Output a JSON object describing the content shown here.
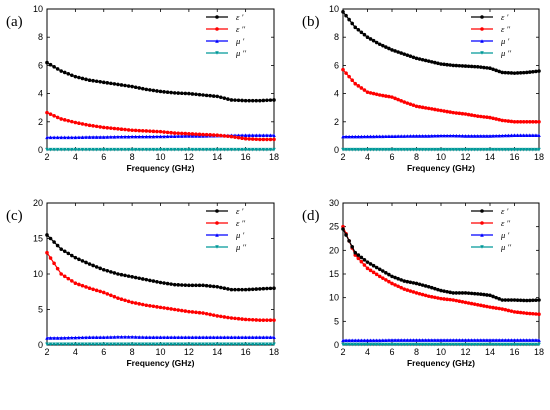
{
  "chart_data": [
    {
      "type": "line",
      "panel_label": "(a)",
      "xlabel": "Frequency (GHz)",
      "ylabel": "",
      "xlim": [
        2,
        18
      ],
      "ylim": [
        0,
        10
      ],
      "xticks": [
        "2",
        "4",
        "6",
        "8",
        "10",
        "12",
        "14",
        "16",
        "18"
      ],
      "yticks": [
        "0",
        "2",
        "4",
        "6",
        "8",
        "10"
      ],
      "legend_position": "top-right",
      "x": [
        2,
        3,
        4,
        5,
        6,
        7,
        8,
        9,
        10,
        11,
        12,
        13,
        14,
        15,
        16,
        17,
        18
      ],
      "series": [
        {
          "name": "ε '",
          "color": "#000000",
          "marker": "circle",
          "values": [
            6.2,
            5.6,
            5.2,
            4.95,
            4.8,
            4.65,
            4.5,
            4.3,
            4.15,
            4.05,
            4.0,
            3.9,
            3.8,
            3.55,
            3.5,
            3.5,
            3.55
          ]
        },
        {
          "name": "ε ''",
          "color": "#ff0000",
          "marker": "circle",
          "values": [
            2.65,
            2.2,
            1.95,
            1.75,
            1.6,
            1.5,
            1.4,
            1.35,
            1.3,
            1.2,
            1.15,
            1.1,
            1.05,
            0.95,
            0.8,
            0.75,
            0.75
          ]
        },
        {
          "name": "μ '",
          "color": "#0000ff",
          "marker": "triangle",
          "values": [
            0.9,
            0.9,
            0.9,
            0.92,
            0.92,
            0.94,
            0.95,
            0.95,
            0.96,
            0.98,
            1.0,
            1.0,
            1.02,
            1.04,
            1.05,
            1.05,
            1.05
          ]
        },
        {
          "name": "μ ''",
          "color": "#009999",
          "marker": "triangle-down",
          "values": [
            0.02,
            0.02,
            0.02,
            0.02,
            0.02,
            0.02,
            0.02,
            0.02,
            0.02,
            0.02,
            0.02,
            0.02,
            0.02,
            0.02,
            0.02,
            0.02,
            0.02
          ]
        }
      ]
    },
    {
      "type": "line",
      "panel_label": "(b)",
      "xlabel": "Frequency (GHz)",
      "ylabel": "",
      "xlim": [
        2,
        18
      ],
      "ylim": [
        0,
        10
      ],
      "xticks": [
        "2",
        "4",
        "6",
        "8",
        "10",
        "12",
        "14",
        "16",
        "18"
      ],
      "yticks": [
        "0",
        "2",
        "4",
        "6",
        "8",
        "10"
      ],
      "legend_position": "top-right",
      "x": [
        2,
        3,
        4,
        5,
        6,
        7,
        8,
        9,
        10,
        11,
        12,
        13,
        14,
        15,
        16,
        17,
        18
      ],
      "series": [
        {
          "name": "ε '",
          "color": "#000000",
          "marker": "circle",
          "values": [
            9.8,
            8.7,
            8.0,
            7.5,
            7.1,
            6.8,
            6.5,
            6.3,
            6.1,
            6.0,
            5.95,
            5.9,
            5.8,
            5.5,
            5.45,
            5.5,
            5.6
          ]
        },
        {
          "name": "ε ''",
          "color": "#ff0000",
          "marker": "circle",
          "values": [
            5.7,
            4.7,
            4.1,
            3.9,
            3.75,
            3.4,
            3.1,
            2.95,
            2.8,
            2.65,
            2.55,
            2.4,
            2.3,
            2.1,
            2.0,
            2.0,
            2.0
          ]
        },
        {
          "name": "μ '",
          "color": "#0000ff",
          "marker": "triangle",
          "values": [
            0.95,
            0.95,
            0.96,
            0.97,
            0.98,
            0.99,
            1.0,
            1.0,
            1.02,
            1.02,
            1.0,
            1.0,
            1.0,
            1.02,
            1.05,
            1.05,
            1.05
          ]
        },
        {
          "name": "μ ''",
          "color": "#009999",
          "marker": "triangle-down",
          "values": [
            0.02,
            0.02,
            0.02,
            0.02,
            0.02,
            0.02,
            0.02,
            0.02,
            0.02,
            0.02,
            0.02,
            0.02,
            0.02,
            0.02,
            0.02,
            0.02,
            0.02
          ]
        }
      ]
    },
    {
      "type": "line",
      "panel_label": "(c)",
      "xlabel": "Frequency (GHz)",
      "ylabel": "",
      "xlim": [
        2,
        18
      ],
      "ylim": [
        0,
        20
      ],
      "xticks": [
        "2",
        "4",
        "6",
        "8",
        "10",
        "12",
        "14",
        "16",
        "18"
      ],
      "yticks": [
        "0",
        "5",
        "10",
        "15",
        "20"
      ],
      "legend_position": "top-right",
      "x": [
        2,
        3,
        4,
        5,
        6,
        7,
        8,
        9,
        10,
        11,
        12,
        13,
        14,
        15,
        16,
        17,
        18
      ],
      "series": [
        {
          "name": "ε '",
          "color": "#000000",
          "marker": "circle",
          "values": [
            15.5,
            13.5,
            12.3,
            11.4,
            10.6,
            10.0,
            9.6,
            9.2,
            8.8,
            8.5,
            8.4,
            8.4,
            8.2,
            7.8,
            7.8,
            7.9,
            8.0
          ]
        },
        {
          "name": "ε ''",
          "color": "#ff0000",
          "marker": "circle",
          "values": [
            13.0,
            10.0,
            8.7,
            8.0,
            7.4,
            6.6,
            6.0,
            5.6,
            5.3,
            5.0,
            4.7,
            4.5,
            4.1,
            3.8,
            3.6,
            3.5,
            3.5
          ]
        },
        {
          "name": "μ '",
          "color": "#0000ff",
          "marker": "triangle",
          "values": [
            1.0,
            1.0,
            1.05,
            1.1,
            1.1,
            1.15,
            1.15,
            1.1,
            1.1,
            1.1,
            1.1,
            1.1,
            1.1,
            1.1,
            1.1,
            1.1,
            1.1
          ]
        },
        {
          "name": "μ ''",
          "color": "#009999",
          "marker": "triangle-down",
          "values": [
            0.1,
            0.1,
            0.1,
            0.1,
            0.1,
            0.1,
            0.1,
            0.1,
            0.1,
            0.1,
            0.1,
            0.1,
            0.1,
            0.1,
            0.1,
            0.1,
            0.1
          ]
        }
      ]
    },
    {
      "type": "line",
      "panel_label": "(d)",
      "xlabel": "Frequency (GHz)",
      "ylabel": "",
      "xlim": [
        2,
        18
      ],
      "ylim": [
        0,
        30
      ],
      "xticks": [
        "2",
        "4",
        "6",
        "8",
        "10",
        "12",
        "14",
        "16",
        "18"
      ],
      "yticks": [
        "0",
        "5",
        "10",
        "15",
        "20",
        "25",
        "30"
      ],
      "legend_position": "top-right",
      "x": [
        2,
        3,
        4,
        5,
        6,
        7,
        8,
        9,
        10,
        11,
        12,
        13,
        14,
        15,
        16,
        17,
        18
      ],
      "series": [
        {
          "name": "ε '",
          "color": "#000000",
          "marker": "circle",
          "values": [
            24.5,
            19.5,
            17.5,
            16.0,
            14.5,
            13.5,
            13.0,
            12.3,
            11.5,
            11.0,
            11.0,
            10.8,
            10.5,
            9.5,
            9.5,
            9.4,
            9.5
          ]
        },
        {
          "name": "ε ''",
          "color": "#ff0000",
          "marker": "circle",
          "values": [
            25.0,
            19.0,
            16.2,
            14.5,
            13.0,
            11.8,
            11.0,
            10.3,
            9.8,
            9.5,
            9.0,
            8.5,
            8.0,
            7.6,
            7.0,
            6.7,
            6.5
          ]
        },
        {
          "name": "μ '",
          "color": "#0000ff",
          "marker": "triangle",
          "values": [
            1.0,
            1.0,
            1.0,
            1.0,
            1.05,
            1.05,
            1.05,
            1.05,
            1.05,
            1.05,
            1.05,
            1.05,
            1.05,
            1.05,
            1.05,
            1.05,
            1.05
          ]
        },
        {
          "name": "μ ''",
          "color": "#009999",
          "marker": "triangle-down",
          "values": [
            0.1,
            0.1,
            0.1,
            0.1,
            0.1,
            0.1,
            0.1,
            0.1,
            0.1,
            0.1,
            0.1,
            0.1,
            0.1,
            0.1,
            0.1,
            0.1,
            0.1
          ]
        }
      ]
    }
  ]
}
